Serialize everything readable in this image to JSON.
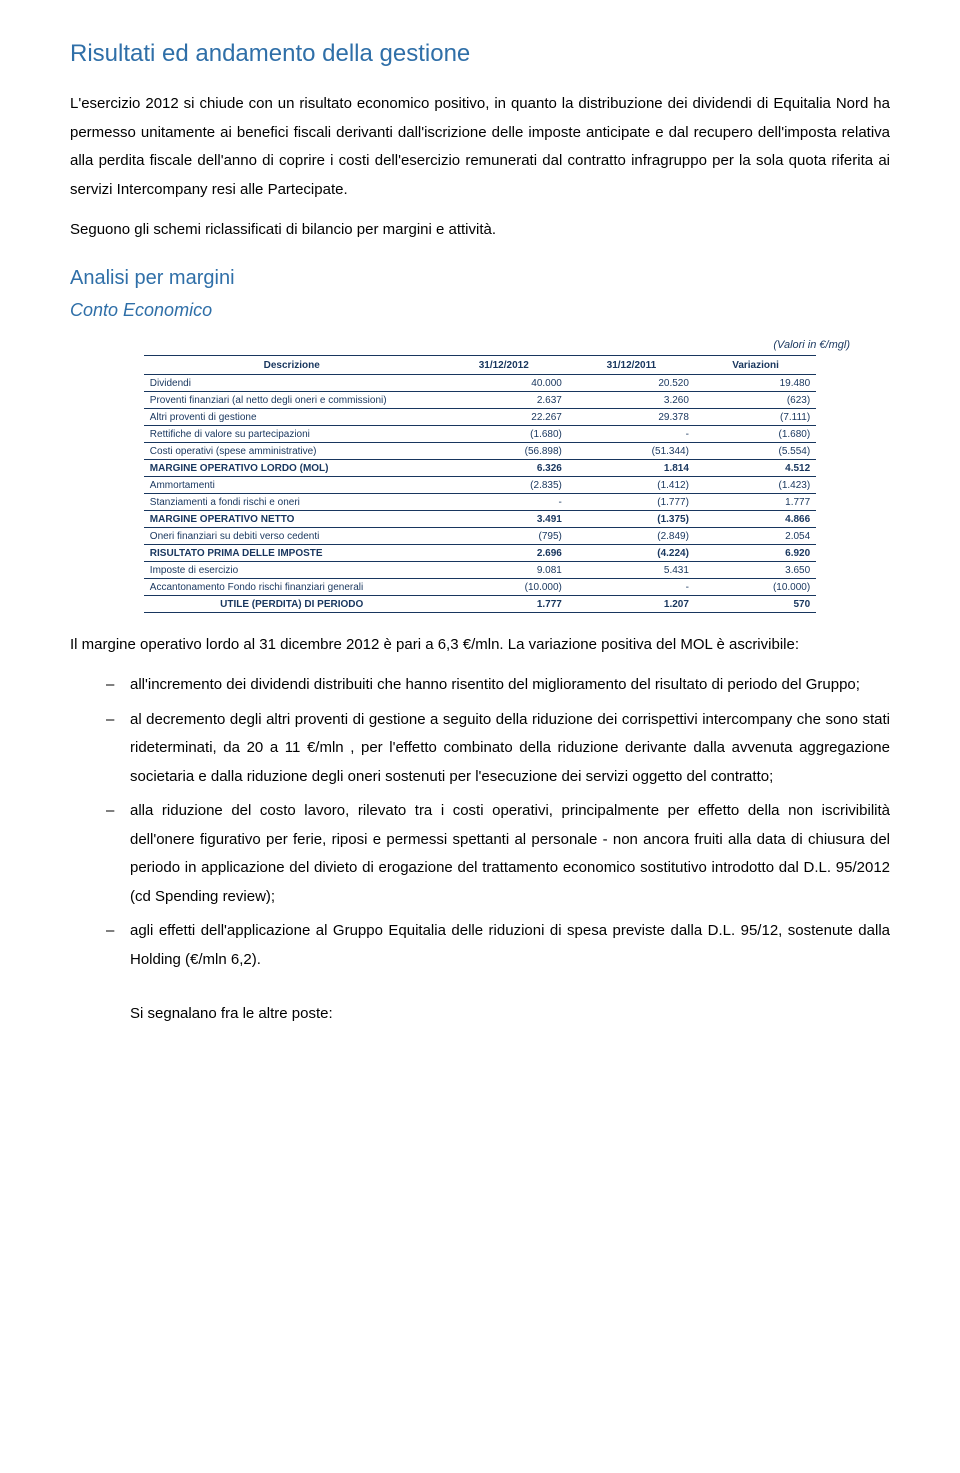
{
  "colors": {
    "accent_blue": "#2f6fa8",
    "table_text": "#18365e",
    "table_border": "#18365e",
    "black": "#000000"
  },
  "title": "Risultati ed andamento della gestione",
  "intro_p1": "L'esercizio 2012 si chiude con un risultato economico positivo, in quanto la distribuzione dei dividendi di Equitalia Nord ha permesso unitamente ai benefici fiscali derivanti dall'iscrizione delle imposte anticipate e dal recupero dell'imposta relativa alla perdita fiscale dell'anno di coprire i costi dell'esercizio remunerati dal contratto infragruppo per la sola quota riferita ai servizi Intercompany resi alle Partecipate.",
  "intro_p2": "Seguono gli schemi riclassificati di bilancio per margini e attività.",
  "sub_heading": "Analisi per margini",
  "sub_heading_italic": "Conto Economico",
  "table": {
    "caption": "(Valori  in €/mgl)",
    "header": {
      "desc": "Descrizione",
      "c1": "31/12/2012",
      "c2": "31/12/2011",
      "c3": "Variazioni"
    },
    "rows": [
      {
        "bold": false,
        "label": "Dividendi",
        "c1": "40.000",
        "c2": "20.520",
        "c3": "19.480"
      },
      {
        "bold": false,
        "label": "Proventi finanziari (al netto degli oneri e commissioni)",
        "c1": "2.637",
        "c2": "3.260",
        "c3": "(623)"
      },
      {
        "bold": false,
        "label": "Altri proventi di gestione",
        "c1": "22.267",
        "c2": "29.378",
        "c3": "(7.111)"
      },
      {
        "bold": false,
        "label": "Rettifiche di valore su partecipazioni",
        "c1": "(1.680)",
        "c2": "-",
        "c3": "(1.680)"
      },
      {
        "bold": false,
        "label": "Costi operativi (spese amministrative)",
        "c1": "(56.898)",
        "c2": "(51.344)",
        "c3": "(5.554)"
      },
      {
        "bold": true,
        "label": "MARGINE OPERATIVO LORDO (MOL)",
        "c1": "6.326",
        "c2": "1.814",
        "c3": "4.512"
      },
      {
        "bold": false,
        "label": "Ammortamenti",
        "c1": "(2.835)",
        "c2": "(1.412)",
        "c3": "(1.423)"
      },
      {
        "bold": false,
        "label": "Stanziamenti a fondi rischi e oneri",
        "c1": "-",
        "c2": "(1.777)",
        "c3": "1.777"
      },
      {
        "bold": true,
        "label": "MARGINE OPERATIVO NETTO",
        "c1": "3.491",
        "c2": "(1.375)",
        "c3": "4.866"
      },
      {
        "bold": false,
        "label": "Oneri finanziari su debiti verso cedenti",
        "c1": "(795)",
        "c2": "(2.849)",
        "c3": "2.054"
      },
      {
        "bold": true,
        "label": "RISULTATO PRIMA DELLE IMPOSTE",
        "c1": "2.696",
        "c2": "(4.224)",
        "c3": "6.920"
      },
      {
        "bold": false,
        "label": "Imposte di esercizio",
        "c1": "9.081",
        "c2": "5.431",
        "c3": "3.650"
      },
      {
        "bold": false,
        "label": "Accantonamento Fondo rischi finanziari generali",
        "c1": "(10.000)",
        "c2": "-",
        "c3": "(10.000)"
      }
    ],
    "final_row": {
      "label": "UTILE (PERDITA) DI PERIODO",
      "c1": "1.777",
      "c2": "1.207",
      "c3": "570"
    }
  },
  "after_table_p": "Il margine operativo lordo al 31 dicembre 2012 è pari a 6,3 €/mln. La variazione positiva del MOL è ascrivibile:",
  "bullets": [
    "all'incremento dei dividendi distribuiti che hanno risentito del miglioramento del risultato di periodo del Gruppo;",
    "al decremento degli altri proventi di gestione a seguito della riduzione dei corrispettivi intercompany che sono stati rideterminati, da 20 a 11 €/mln , per l'effetto combinato della riduzione derivante dalla avvenuta aggregazione societaria e dalla riduzione degli oneri sostenuti per l'esecuzione dei servizi oggetto del contratto;",
    "alla riduzione del costo lavoro, rilevato tra i costi operativi, principalmente per effetto della non iscrivibilità dell'onere figurativo per ferie, riposi e permessi spettanti al personale - non ancora fruiti alla data di chiusura del periodo in applicazione del divieto di erogazione del trattamento economico sostitutivo introdotto dal D.L. 95/2012 (cd Spending review);",
    "agli effetti dell'applicazione al Gruppo Equitalia delle riduzioni di spesa previste dalla D.L. 95/12, sostenute dalla Holding (€/mln 6,2)."
  ],
  "closing": "Si segnalano fra le altre poste:"
}
